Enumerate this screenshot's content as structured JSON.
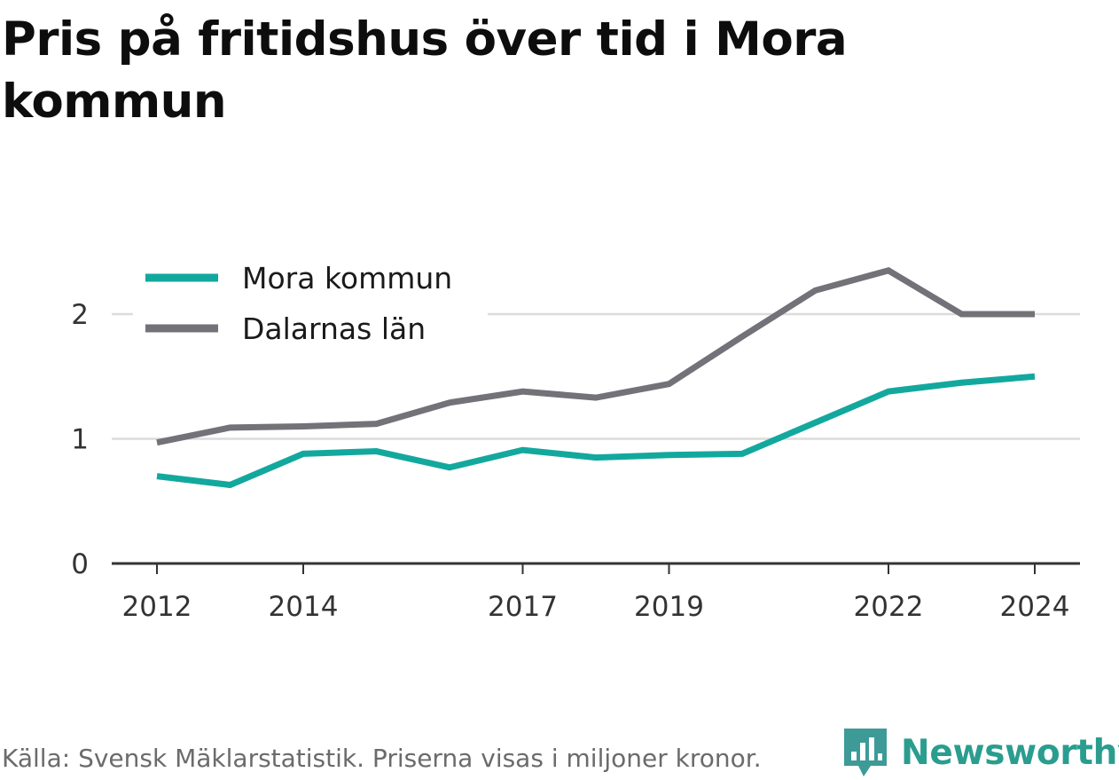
{
  "title": "Pris på fritidshus över tid i Mora kommun",
  "footer": {
    "source": "Källa: Svensk Mäklarstatistik. Priserna visas i miljoner kronor."
  },
  "brand": {
    "name": "Newsworthy",
    "logo_icon": "newsworthy-bar-chart-speech-bubble-icon",
    "color": "#3d9a97"
  },
  "chart_data": {
    "type": "line",
    "title": "Pris på fritidshus över tid i Mora kommun",
    "xlabel": "",
    "ylabel": "",
    "x": [
      2012,
      2013,
      2014,
      2015,
      2016,
      2017,
      2018,
      2019,
      2020,
      2021,
      2022,
      2023,
      2024
    ],
    "xticks": [
      2012,
      2014,
      2017,
      2019,
      2022,
      2024
    ],
    "ylim": [
      0,
      2.5
    ],
    "yticks": [
      0,
      1,
      2
    ],
    "grid": true,
    "legend_position": "top-left",
    "series": [
      {
        "name": "Mora kommun",
        "color": "#13a89e",
        "values": [
          0.7,
          0.63,
          0.88,
          0.9,
          0.77,
          0.91,
          0.85,
          0.87,
          0.88,
          1.13,
          1.38,
          1.45,
          1.5
        ]
      },
      {
        "name": "Dalarnas län",
        "color": "#737278",
        "values": [
          0.97,
          1.09,
          1.1,
          1.12,
          1.29,
          1.38,
          1.33,
          1.44,
          1.82,
          2.19,
          2.35,
          2.0,
          2.0
        ]
      }
    ]
  }
}
